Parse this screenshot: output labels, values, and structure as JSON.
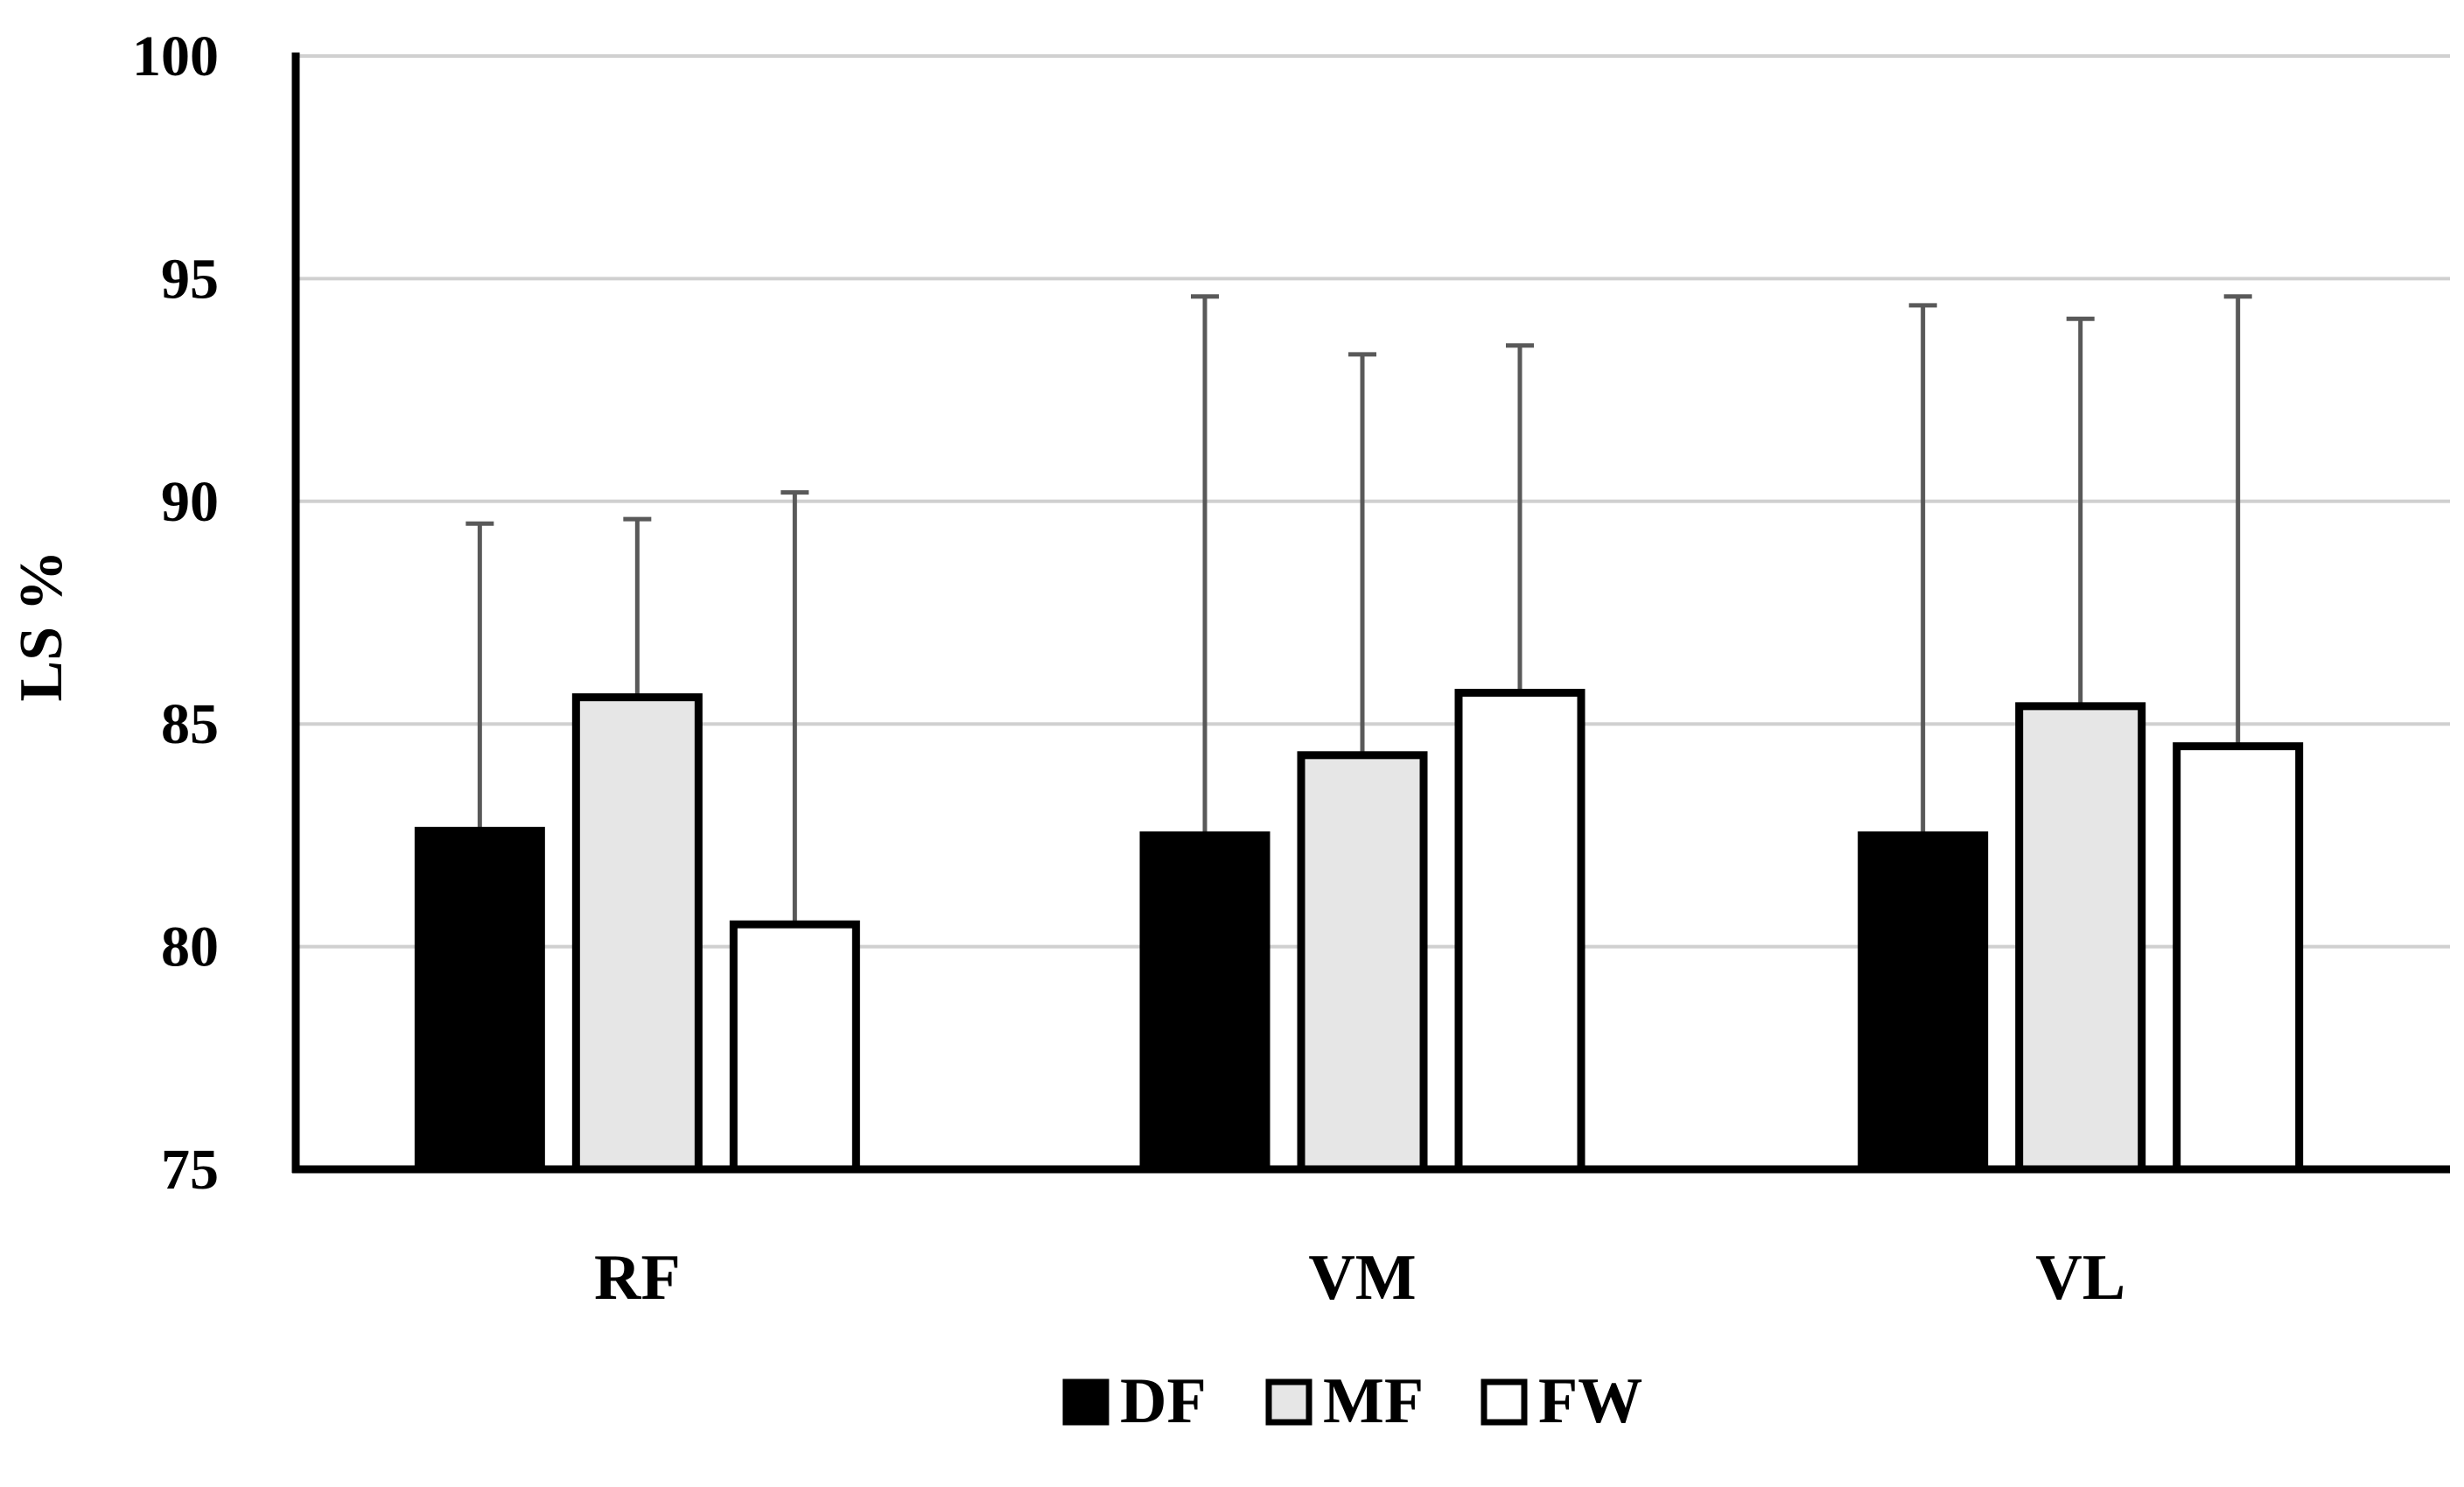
{
  "chart_data": {
    "type": "bar",
    "title": "",
    "xlabel": "",
    "ylabel": "LS %",
    "ylim": [
      75,
      100
    ],
    "yticks": [
      75,
      80,
      85,
      90,
      95,
      100
    ],
    "ytick_labels": [
      "75",
      "80",
      "85",
      "90",
      "95",
      "100"
    ],
    "grid": true,
    "legend_position": "bottom",
    "error_bars": "upper",
    "categories": [
      "RF",
      "VM",
      "VL"
    ],
    "series": [
      {
        "name": "DF",
        "values": [
          82.6,
          82.5,
          82.5
        ],
        "errors": [
          6.9,
          12.1,
          11.9
        ]
      },
      {
        "name": "MF",
        "values": [
          85.6,
          84.3,
          85.4
        ],
        "errors": [
          4.0,
          9.0,
          8.7
        ]
      },
      {
        "name": "FW",
        "values": [
          80.5,
          85.7,
          84.5
        ],
        "errors": [
          9.7,
          7.8,
          10.1
        ]
      }
    ]
  },
  "colors": {
    "series": [
      "#000000",
      "#e6e6e6",
      "#ffffff"
    ],
    "bar_stroke": "#000000",
    "error_bar": "#595959",
    "grid": "#d0d0d0",
    "axis": "#000000"
  }
}
